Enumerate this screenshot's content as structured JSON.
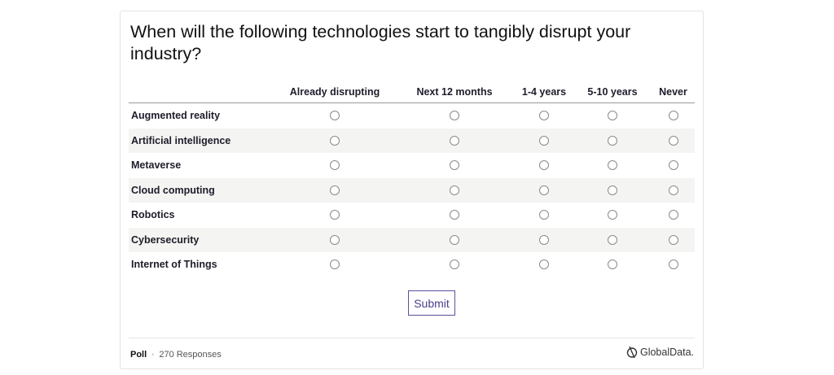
{
  "poll": {
    "question": "When will the following technologies start to tangibly disrupt your industry?",
    "columns": [
      "Already disrupting",
      "Next 12 months",
      "1-4 years",
      "5-10 years",
      "Never"
    ],
    "rows": [
      "Augmented reality",
      "Artificial intelligence",
      "Metaverse",
      "Cloud computing",
      "Robotics",
      "Cybersecurity",
      "Internet of Things"
    ],
    "submit_label": "Submit"
  },
  "footer": {
    "type_label": "Poll",
    "responses": "270 Responses",
    "logo_text": "GlobalData."
  },
  "colors": {
    "accent": "#5c4f9e",
    "row_stripe": "#f4f4f2"
  }
}
